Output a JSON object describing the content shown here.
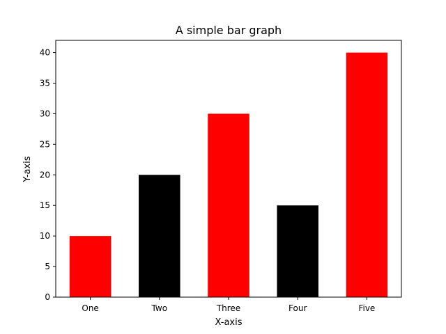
{
  "chart_data": {
    "type": "bar",
    "title": "A simple bar graph",
    "xlabel": "X-axis",
    "ylabel": "Y-axis",
    "categories": [
      "One",
      "Two",
      "Three",
      "Four",
      "Five"
    ],
    "values": [
      10,
      20,
      30,
      15,
      40
    ],
    "bar_colors": [
      "#ff0000",
      "#000000",
      "#ff0000",
      "#000000",
      "#ff0000"
    ],
    "ylim": [
      0,
      42
    ],
    "yticks": [
      0,
      5,
      10,
      15,
      20,
      25,
      30,
      35,
      40
    ],
    "grid": false,
    "legend": "none"
  }
}
